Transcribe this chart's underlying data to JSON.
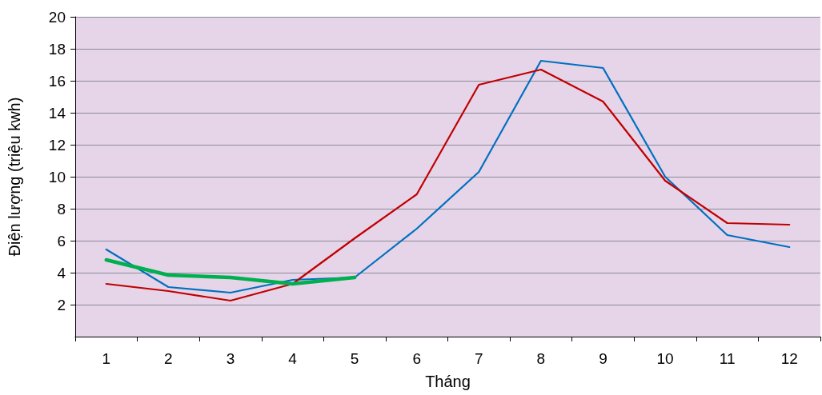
{
  "chart_data": {
    "type": "line",
    "xlabel": "Tháng",
    "ylabel": "Điện lượng (triệu kwh)",
    "categories": [
      "1",
      "2",
      "3",
      "4",
      "5",
      "6",
      "7",
      "8",
      "9",
      "10",
      "11",
      "12"
    ],
    "series": [
      {
        "color": "#0070c0",
        "values": [
          5.45,
          3.1,
          2.75,
          3.55,
          3.7,
          6.75,
          10.3,
          17.25,
          16.8,
          10.0,
          6.35,
          5.6
        ]
      },
      {
        "color": "#c00000",
        "values": [
          3.3,
          2.85,
          2.25,
          3.3,
          6.15,
          8.9,
          15.75,
          16.7,
          14.7,
          9.75,
          7.1,
          7.0
        ]
      },
      {
        "color": "#00b050",
        "values": [
          4.8,
          3.85,
          3.7,
          3.3,
          3.7,
          null,
          null,
          null,
          null,
          null,
          null,
          null
        ]
      }
    ],
    "ylim": [
      0,
      20
    ],
    "yticks": [
      2,
      4,
      6,
      8,
      10,
      12,
      14,
      16,
      18,
      20
    ],
    "grid": "y",
    "marker": "none"
  }
}
